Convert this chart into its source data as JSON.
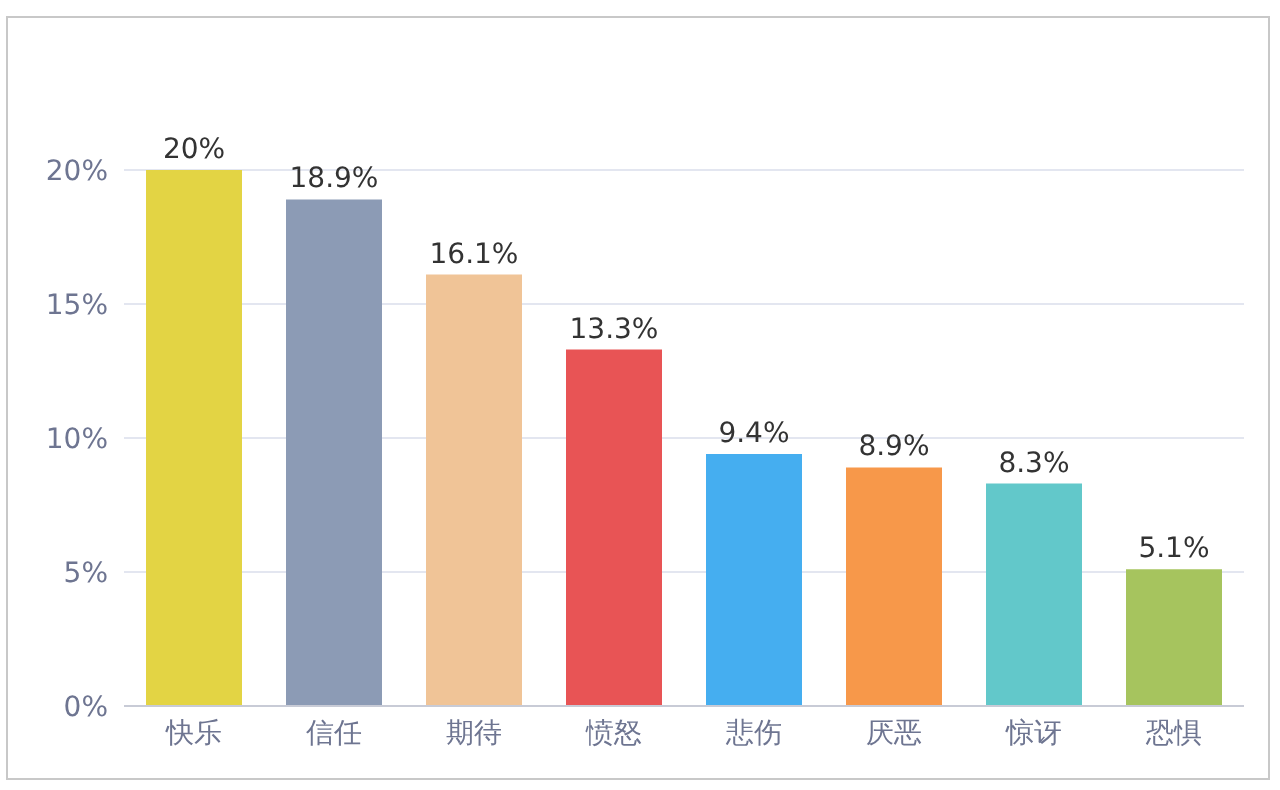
{
  "chart_data": {
    "type": "bar",
    "categories": [
      "快乐",
      "信任",
      "期待",
      "愤怒",
      "悲伤",
      "厌恶",
      "惊讶",
      "恐惧"
    ],
    "values": [
      20,
      18.9,
      16.1,
      13.3,
      9.4,
      8.9,
      8.3,
      5.1
    ],
    "colors": [
      "#e3d444",
      "#8c9bb5",
      "#f0c497",
      "#e85455",
      "#45aef0",
      "#f7984a",
      "#62c8ca",
      "#a6c45e"
    ],
    "value_labels": [
      "20%",
      "18.9%",
      "16.1%",
      "13.3%",
      "9.4%",
      "8.9%",
      "8.3%",
      "5.1%"
    ],
    "ylim": [
      0,
      20
    ],
    "yticks": [
      {
        "value": 0,
        "label": "0%"
      },
      {
        "value": 5,
        "label": "5%"
      },
      {
        "value": 10,
        "label": "10%"
      },
      {
        "value": 15,
        "label": "15%"
      },
      {
        "value": 20,
        "label": "20%"
      }
    ],
    "grid": "y"
  }
}
